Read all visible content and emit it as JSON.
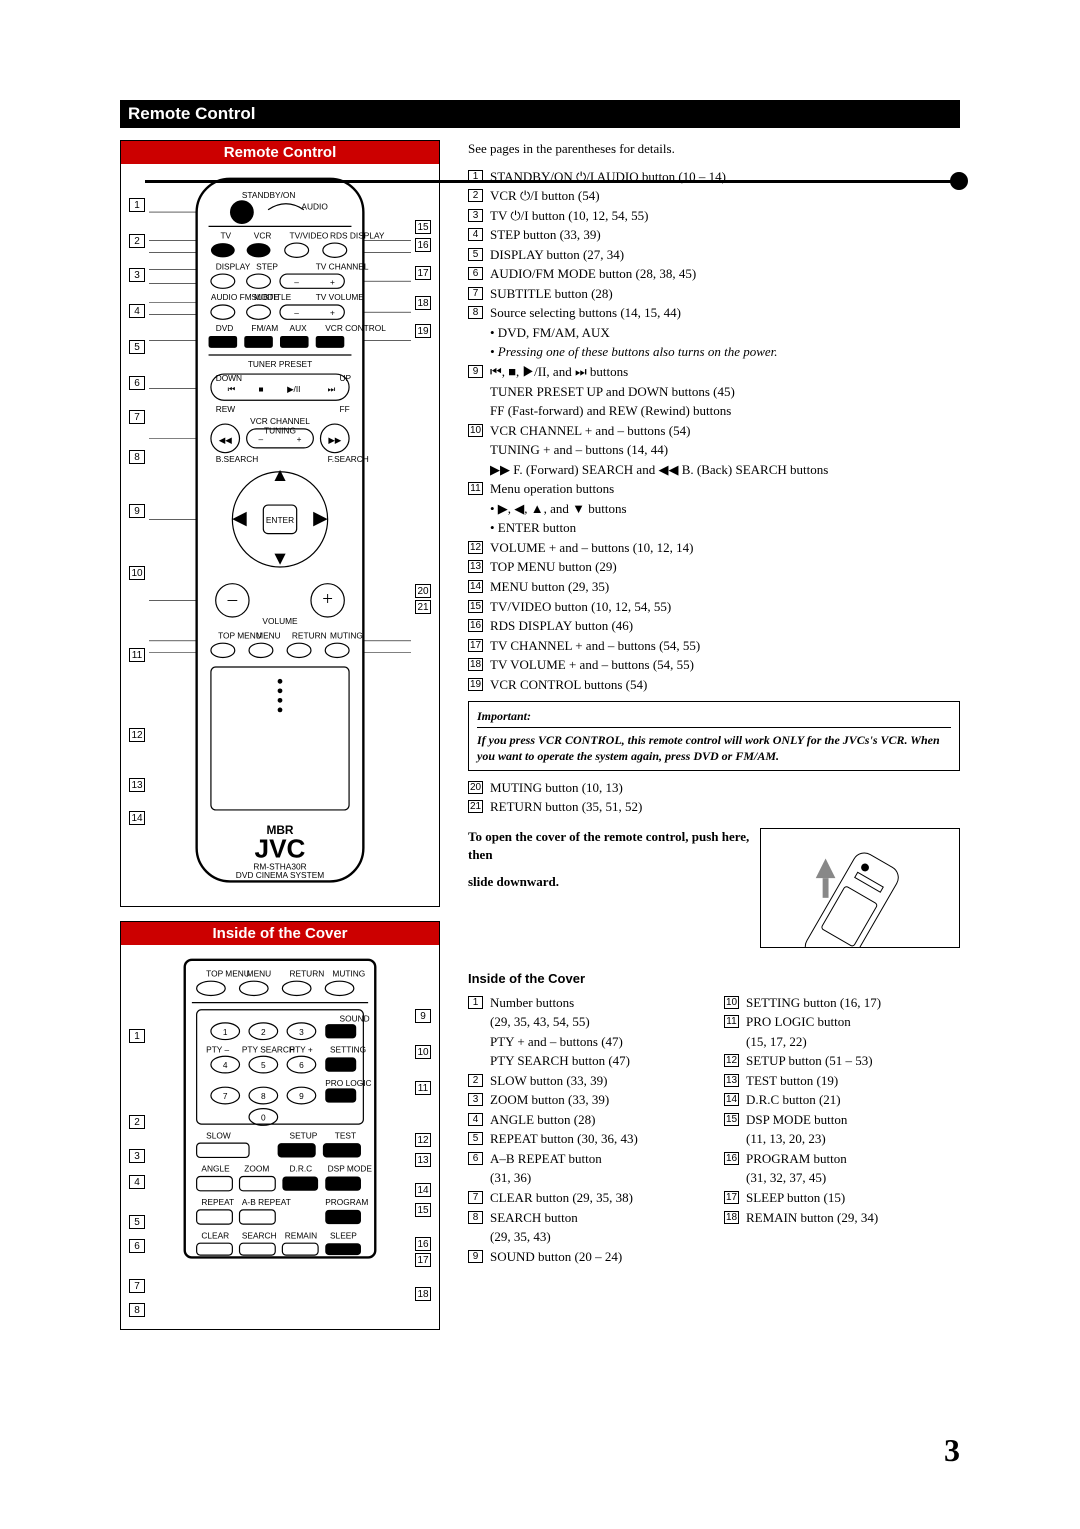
{
  "section_title": "Remote Control",
  "panel_remote": "Remote Control",
  "panel_cover": "Inside of the Cover",
  "logo": "JVC",
  "logo_sub": "RM-STHA30R",
  "logo_sub2": "DVD CINEMA SYSTEM",
  "mbr": "MBR",
  "lead": "See pages in the parentheses for details.",
  "remote_callouts_left": [
    "1",
    "2",
    "3",
    "4",
    "5",
    "6",
    "7",
    "8",
    "9",
    "10",
    "11",
    "12",
    "13",
    "14"
  ],
  "remote_callouts_right": [
    "15",
    "16",
    "17",
    "18",
    "19",
    "20",
    "21"
  ],
  "cover_callouts_left": [
    "1",
    "2",
    "3",
    "4",
    "5",
    "6",
    "7",
    "8"
  ],
  "cover_callouts_right": [
    "9",
    "10",
    "11",
    "12",
    "13",
    "14",
    "15",
    "16",
    "17",
    "18"
  ],
  "refs": [
    {
      "n": "1",
      "t": "STANDBY/ON ⏻/I AUDIO button (10 – 14)"
    },
    {
      "n": "2",
      "t": "VCR ⏻/I button (54)"
    },
    {
      "n": "3",
      "t": "TV ⏻/I button (10, 12, 54, 55)"
    },
    {
      "n": "4",
      "t": "STEP button (33, 39)"
    },
    {
      "n": "5",
      "t": "DISPLAY button (27, 34)"
    },
    {
      "n": "6",
      "t": "AUDIO/FM MODE button (28, 38, 45)"
    },
    {
      "n": "7",
      "t": "SUBTITLE button (28)"
    },
    {
      "n": "8",
      "t": "Source selecting buttons (14, 15, 44)"
    }
  ],
  "refs8_sub": [
    "• DVD, FM/AM, AUX",
    "• Pressing one of these buttons also turns on the power."
  ],
  "refs9": {
    "n": "9",
    "t": "⏮, ■, ▶/II, and ⏭ buttons"
  },
  "refs9_sub": [
    "TUNER PRESET UP and DOWN buttons (45)",
    "FF (Fast-forward) and REW (Rewind) buttons"
  ],
  "refs10": {
    "n": "10",
    "t": "VCR CHANNEL + and – buttons (54)"
  },
  "refs10_sub": [
    "TUNING + and – buttons (14, 44)",
    "▶▶ F. (Forward) SEARCH and ◀◀ B. (Back) SEARCH buttons"
  ],
  "refs11": {
    "n": "11",
    "t": "Menu operation buttons"
  },
  "refs11_sub": [
    "• ▶, ◀, ▲, and ▼ buttons",
    "• ENTER button"
  ],
  "refs12_19": [
    {
      "n": "12",
      "t": "VOLUME + and – buttons (10, 12, 14)"
    },
    {
      "n": "13",
      "t": "TOP MENU button (29)"
    },
    {
      "n": "14",
      "t": "MENU button (29, 35)"
    },
    {
      "n": "15",
      "t": "TV/VIDEO button (10, 12, 54, 55)"
    },
    {
      "n": "16",
      "t": "RDS DISPLAY button (46)"
    },
    {
      "n": "17",
      "t": "TV CHANNEL + and – buttons (54, 55)"
    },
    {
      "n": "18",
      "t": "TV VOLUME + and – buttons  (54, 55)"
    },
    {
      "n": "19",
      "t": "VCR CONTROL buttons (54)"
    }
  ],
  "important_hdr": "Important:",
  "important_body": "If you press VCR CONTROL, this remote control will work ONLY for the JVCs's VCR. When you want to operate the system again, press DVD or FM/AM.",
  "refs20_21": [
    {
      "n": "20",
      "t": "MUTING button (10, 13)"
    },
    {
      "n": "21",
      "t": "RETURN button (35, 51, 52)"
    }
  ],
  "cover_open1": "To open the cover of the remote control, push here, then",
  "cover_open2": "slide downward.",
  "inside_header": "Inside of the Cover",
  "inside_left": [
    {
      "n": "1",
      "t": "Number buttons",
      "s": [
        "(29, 35, 43, 54, 55)",
        "PTY + and – buttons (47)",
        "PTY SEARCH button (47)"
      ]
    },
    {
      "n": "2",
      "t": "SLOW button (33, 39)"
    },
    {
      "n": "3",
      "t": "ZOOM button (33, 39)"
    },
    {
      "n": "4",
      "t": "ANGLE button (28)"
    },
    {
      "n": "5",
      "t": "REPEAT button (30, 36, 43)"
    },
    {
      "n": "6",
      "t": "A–B REPEAT button",
      "s": [
        "(31, 36)"
      ]
    },
    {
      "n": "7",
      "t": "CLEAR button (29, 35, 38)"
    },
    {
      "n": "8",
      "t": "SEARCH button",
      "s": [
        "(29, 35, 43)"
      ]
    },
    {
      "n": "9",
      "t": "SOUND button (20 – 24)"
    }
  ],
  "inside_right": [
    {
      "n": "10",
      "t": "SETTING button (16, 17)"
    },
    {
      "n": "11",
      "t": "PRO LOGIC button",
      "s": [
        "(15, 17, 22)"
      ]
    },
    {
      "n": "12",
      "t": "SETUP button (51 – 53)"
    },
    {
      "n": "13",
      "t": "TEST button (19)"
    },
    {
      "n": "14",
      "t": "D.R.C button (21)"
    },
    {
      "n": "15",
      "t": "DSP MODE button",
      "s": [
        "(11, 13, 20, 23)"
      ]
    },
    {
      "n": "16",
      "t": "PROGRAM button",
      "s": [
        "(31, 32, 37, 45)"
      ]
    },
    {
      "n": "17",
      "t": "SLEEP button (15)"
    },
    {
      "n": "18",
      "t": "REMAIN button (29, 34)"
    }
  ],
  "remote_labels": {
    "standby": "STANDBY/ON",
    "audio": "AUDIO",
    "tv": "TV",
    "vcr": "VCR",
    "tvvideo": "TV/VIDEO",
    "rds": "RDS DISPLAY",
    "display": "DISPLAY",
    "step": "STEP",
    "tvchannel": "TV CHANNEL",
    "fmmode": "AUDIO FM MODE",
    "subtitle": "SUBTITLE",
    "tvvolume": "TV VOLUME",
    "dvd": "DVD",
    "fmam": "FM/AM",
    "aux": "AUX",
    "vcrctrl": "VCR CONTROL",
    "tuner": "TUNER PRESET",
    "down": "DOWN",
    "up": "UP",
    "rew": "REW",
    "ff": "FF",
    "vcrch": "VCR CHANNEL",
    "tuning": "TUNING",
    "bsearch": "B.SEARCH",
    "fsearch": "F.SEARCH",
    "enter": "ENTER",
    "volume": "VOLUME",
    "topmenu": "TOP MENU",
    "menu": "MENU",
    "return": "RETURN",
    "muting": "MUTING"
  },
  "cover_labels": {
    "topmenu": "TOP MENU",
    "menu": "MENU",
    "return": "RETURN",
    "muting": "MUTING",
    "sound": "SOUND",
    "pty_minus": "PTY –",
    "ptysearch": "PTY SEARCH",
    "pty_plus": "PTY +",
    "setting": "SETTING",
    "prologic": "PRO LOGIC",
    "slow": "SLOW",
    "setup": "SETUP",
    "test": "TEST",
    "angle": "ANGLE",
    "zoom": "ZOOM",
    "drc": "D.R.C",
    "dspmode": "DSP MODE",
    "repeat": "REPEAT",
    "abrepeat": "A-B REPEAT",
    "program": "PROGRAM",
    "clear": "CLEAR",
    "search": "SEARCH",
    "remain": "REMAIN",
    "sleep": "SLEEP"
  },
  "page_num": "3"
}
